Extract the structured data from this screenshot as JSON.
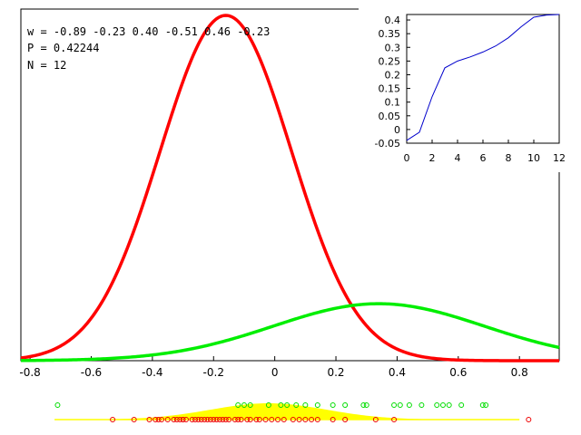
{
  "chart_data": [
    {
      "type": "line",
      "title": "",
      "xlabel": "",
      "ylabel": "",
      "xlim": [
        -0.83,
        0.93
      ],
      "ylim": [
        0,
        1.0
      ],
      "grid": false,
      "annotations": [
        "w = -0.89 -0.23 0.40 -0.51 0.46 -0.23",
        "P = 0.42244",
        "N = 12"
      ],
      "xticks": [
        -0.8,
        -0.6,
        -0.4,
        -0.2,
        0,
        0.2,
        0.4,
        0.6,
        0.8
      ],
      "xtick_labels": [
        "-0.8",
        "-0.6",
        "-0.4",
        "-0.2",
        "0",
        "0.2",
        "0.4",
        "0.6",
        "0.8"
      ],
      "series": [
        {
          "color": "#ff0000",
          "curve": "gaussian",
          "mean": -0.16,
          "sd": 0.215,
          "peak": 1.0
        },
        {
          "color": "#00ee00",
          "curve": "gaussian",
          "mean": 0.34,
          "sd": 0.345,
          "peak": 0.165
        }
      ]
    },
    {
      "type": "line",
      "title": "",
      "xlim": [
        0,
        12
      ],
      "ylim": [
        -0.05,
        0.42
      ],
      "xticks": [
        0,
        2,
        4,
        6,
        8,
        10,
        12
      ],
      "xtick_labels": [
        "0",
        "2",
        "4",
        "6",
        "8",
        "10",
        "12"
      ],
      "yticks": [
        -0.05,
        0,
        0.05,
        0.1,
        0.15,
        0.2,
        0.25,
        0.3,
        0.35,
        0.4
      ],
      "ytick_labels": [
        "-0.05",
        "0",
        "0.05",
        "0.1",
        "0.15",
        "0.2",
        "0.25",
        "0.3",
        "0.35",
        "0.4"
      ],
      "series": [
        {
          "color": "#0000cc",
          "x": [
            0,
            1,
            2,
            3,
            4,
            5,
            6,
            7,
            8,
            9,
            10,
            11,
            12
          ],
          "y": [
            -0.04,
            -0.01,
            0.12,
            0.225,
            0.25,
            0.265,
            0.283,
            0.305,
            0.335,
            0.375,
            0.41,
            0.418,
            0.42
          ]
        }
      ]
    },
    {
      "type": "scatter",
      "xlim": [
        -0.83,
        0.93
      ],
      "green_points": [
        -0.71,
        -0.12,
        -0.1,
        -0.08,
        -0.02,
        0.02,
        0.04,
        0.07,
        0.1,
        0.14,
        0.19,
        0.23,
        0.29,
        0.3,
        0.39,
        0.41,
        0.44,
        0.48,
        0.53,
        0.55,
        0.57,
        0.61,
        0.68,
        0.69
      ],
      "red_points": [
        -0.53,
        -0.46,
        -0.41,
        -0.39,
        -0.38,
        -0.37,
        -0.35,
        -0.33,
        -0.32,
        -0.31,
        -0.3,
        -0.3,
        -0.29,
        -0.27,
        -0.26,
        -0.25,
        -0.24,
        -0.23,
        -0.22,
        -0.21,
        -0.2,
        -0.19,
        -0.18,
        -0.17,
        -0.16,
        -0.15,
        -0.13,
        -0.12,
        -0.11,
        -0.09,
        -0.08,
        -0.06,
        -0.05,
        -0.03,
        -0.01,
        0.01,
        0.03,
        0.06,
        0.08,
        0.1,
        0.12,
        0.14,
        0.19,
        0.23,
        0.33,
        0.39,
        0.83
      ],
      "density_color": "#ffff00",
      "density_mean": -0.02,
      "density_sd": 0.19
    }
  ]
}
